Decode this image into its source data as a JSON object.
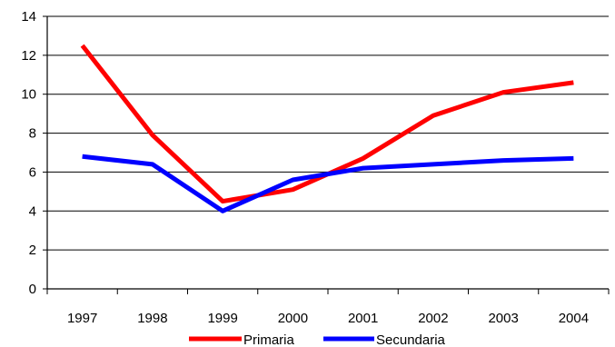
{
  "chart_data": {
    "type": "line",
    "categories": [
      "1997",
      "1998",
      "1999",
      "2000",
      "2001",
      "2002",
      "2003",
      "2004"
    ],
    "series": [
      {
        "name": "Primaria",
        "color": "#ff0000",
        "values": [
          12.5,
          7.9,
          4.5,
          5.1,
          6.7,
          8.9,
          10.1,
          10.6
        ]
      },
      {
        "name": "Secundaria",
        "color": "#0000ff",
        "values": [
          6.8,
          6.4,
          4.0,
          5.6,
          6.2,
          6.4,
          6.6,
          6.7
        ]
      }
    ],
    "ylim": [
      0,
      14
    ],
    "yticks": [
      "0",
      "2",
      "4",
      "6",
      "8",
      "10",
      "12",
      "14"
    ],
    "grid": true,
    "legend": "bottom"
  }
}
